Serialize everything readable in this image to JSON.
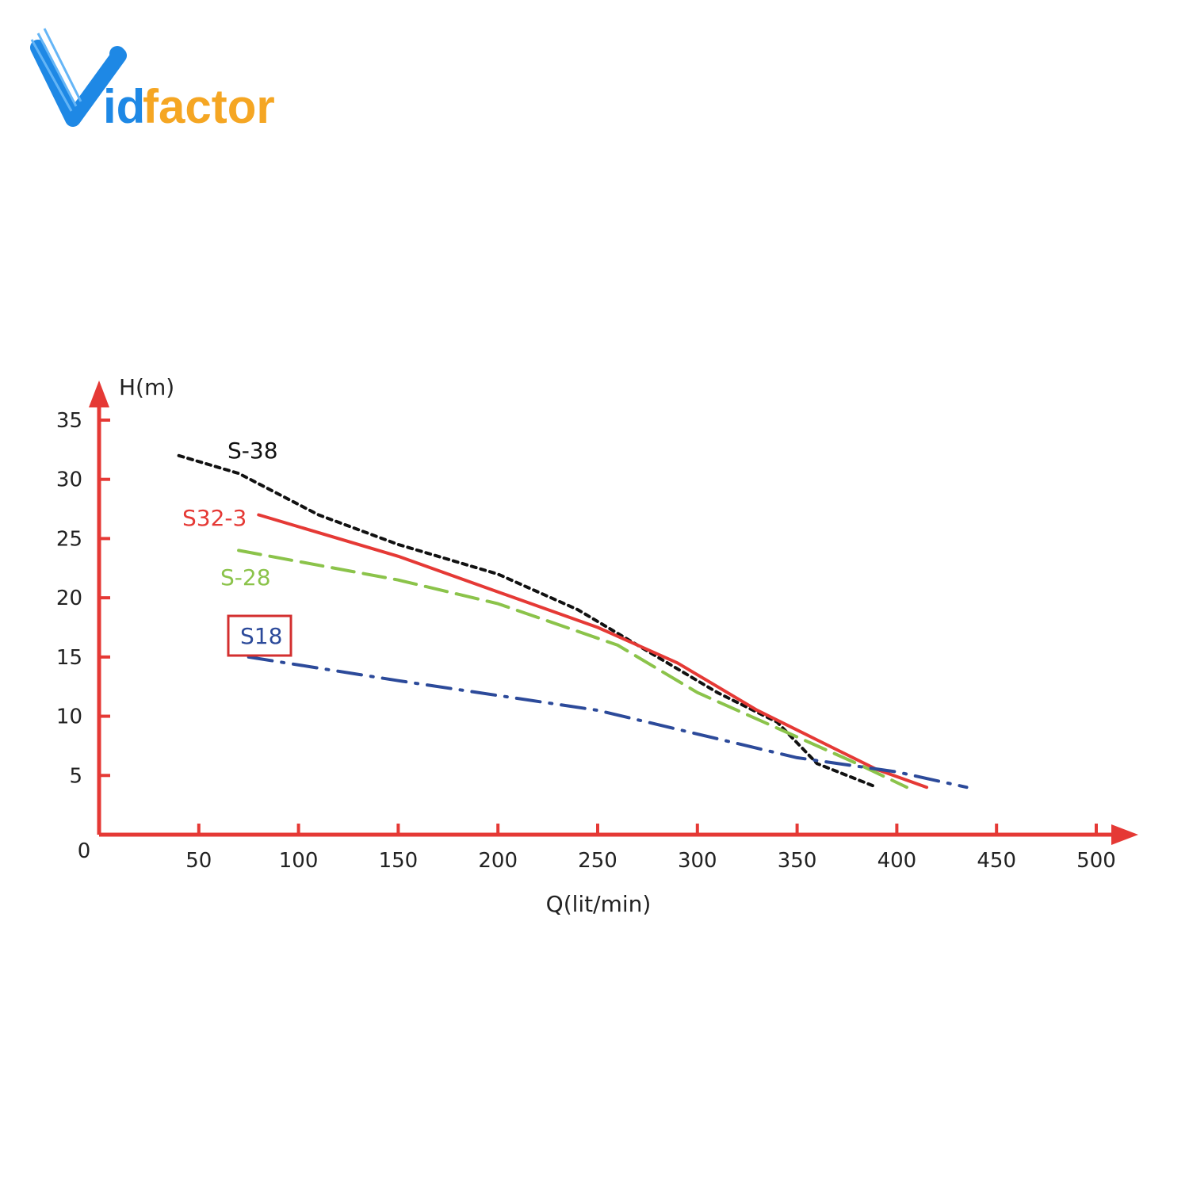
{
  "brand": {
    "logo_text": "Vidfactor",
    "logo_color_primary": "#1e88e5",
    "logo_color_secondary": "#f5a623"
  },
  "chart_data": {
    "type": "line",
    "title": "",
    "xlabel": "Q(lit/min)",
    "ylabel": "H(m)",
    "xlim": [
      0,
      500
    ],
    "ylim": [
      0,
      35
    ],
    "x_ticks": [
      "0",
      "50",
      "100",
      "150",
      "200",
      "250",
      "300",
      "350",
      "400",
      "450",
      "500"
    ],
    "y_ticks": [
      "5",
      "10",
      "15",
      "20",
      "25",
      "30",
      "35"
    ],
    "axis_color": "#e53935",
    "grid": false,
    "series": [
      {
        "name": "S-38",
        "color": "#111111",
        "dash": "6,6",
        "points": [
          [
            40,
            32
          ],
          [
            70,
            30.5
          ],
          [
            110,
            27
          ],
          [
            150,
            24.5
          ],
          [
            200,
            22
          ],
          [
            240,
            19
          ],
          [
            280,
            15
          ],
          [
            310,
            12
          ],
          [
            340,
            9.5
          ],
          [
            360,
            6
          ],
          [
            390,
            4
          ]
        ]
      },
      {
        "name": "S32-3",
        "color": "#e53935",
        "dash": "",
        "points": [
          [
            80,
            27
          ],
          [
            150,
            23.5
          ],
          [
            200,
            20.5
          ],
          [
            250,
            17.5
          ],
          [
            290,
            14.5
          ],
          [
            330,
            10.5
          ],
          [
            360,
            8
          ],
          [
            390,
            5.5
          ],
          [
            415,
            4
          ]
        ]
      },
      {
        "name": "S-28",
        "color": "#8bc34a",
        "dash": "28,12",
        "points": [
          [
            70,
            24
          ],
          [
            150,
            21.5
          ],
          [
            200,
            19.5
          ],
          [
            260,
            16
          ],
          [
            300,
            12
          ],
          [
            340,
            9
          ],
          [
            380,
            6
          ],
          [
            405,
            4
          ]
        ]
      },
      {
        "name": "S18",
        "color": "#2c4a9a",
        "dash": "30,12,3,12",
        "points": [
          [
            75,
            15
          ],
          [
            150,
            13
          ],
          [
            250,
            10.5
          ],
          [
            350,
            6.5
          ],
          [
            400,
            5.3
          ],
          [
            435,
            4
          ]
        ]
      }
    ]
  }
}
